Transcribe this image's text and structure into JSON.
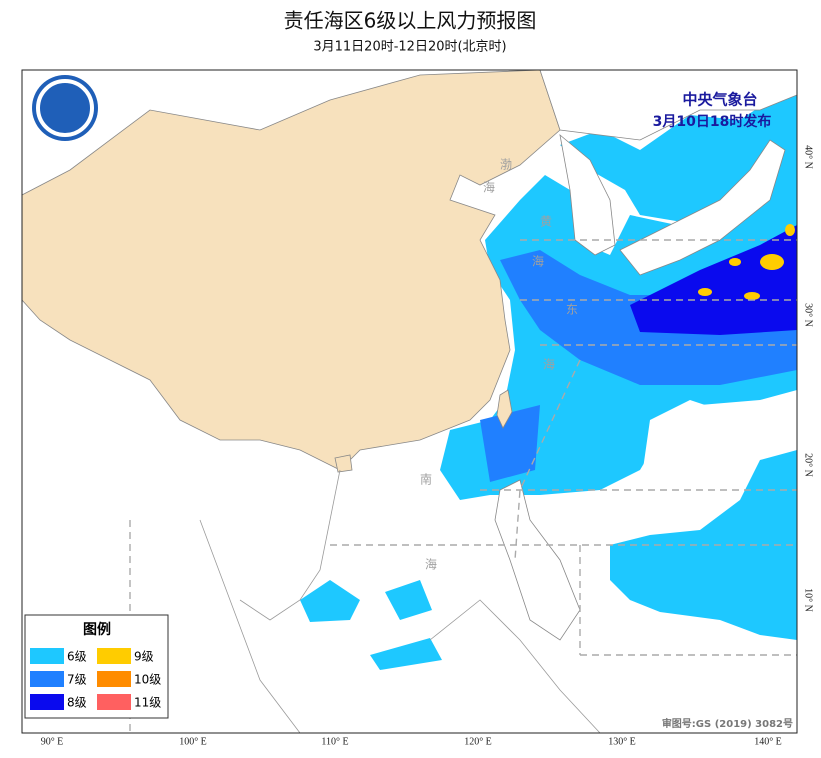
{
  "header": {
    "title": "责任海区6级以上风力预报图",
    "subtitle": "3月11日20时-12日20时(北京时)"
  },
  "issuer": {
    "name": "中央气象台",
    "time": "3月10日18时发布"
  },
  "sea_labels": [
    "渤",
    "海",
    "黄",
    "海",
    "东",
    "海",
    "南",
    "海"
  ],
  "lat_labels": [
    "40° N",
    "30° N",
    "20° N",
    "10° N"
  ],
  "lon_labels": [
    "90° E",
    "100° E",
    "110° E",
    "120° E",
    "130° E",
    "140° E"
  ],
  "legend": {
    "title": "图例",
    "items": [
      "6级",
      "7级",
      "8级",
      "9级",
      "10级",
      "11级"
    ]
  },
  "approval": "审图号:GS (2019) 3082号"
}
